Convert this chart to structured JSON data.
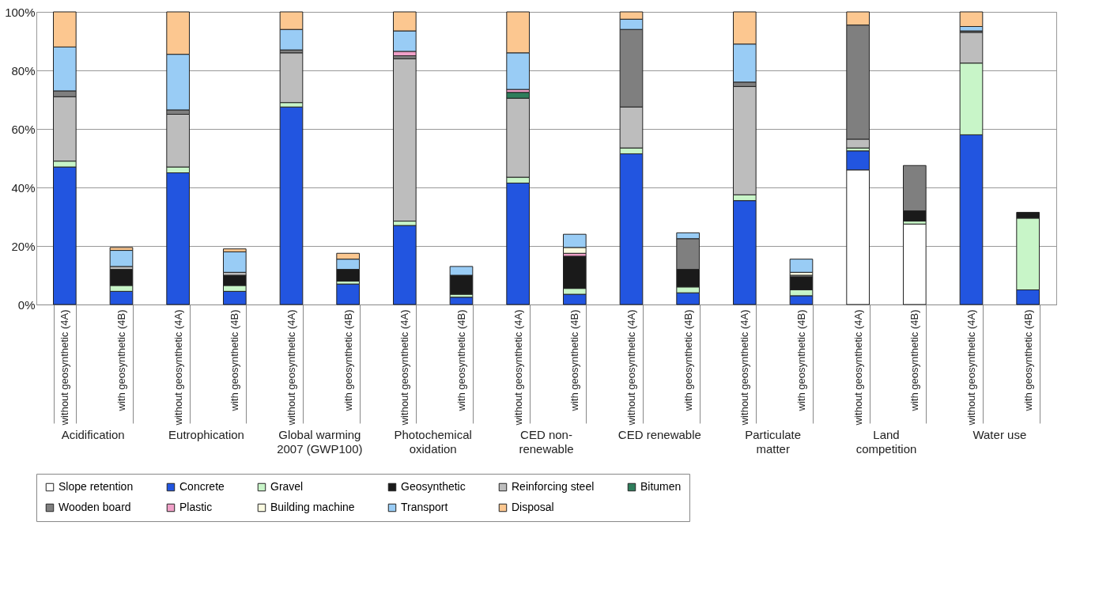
{
  "chart_data": {
    "type": "bar",
    "stacked": true,
    "categories": [
      "without geosynthetic (4A)",
      "with geosynthetic (4B)",
      "without geosynthetic (4A)",
      "with geosynthetic (4B)",
      "without geosynthetic (4A)",
      "with geosynthetic (4B)",
      "without geosynthetic (4A)",
      "with geosynthetic (4B)",
      "without geosynthetic (4A)",
      "with geosynthetic (4B)",
      "without geosynthetic (4A)",
      "with geosynthetic (4B)",
      "without geosynthetic (4A)",
      "with geosynthetic (4B)",
      "without geosynthetic (4A)",
      "with geosynthetic (4B)",
      "without geosynthetic (4A)",
      "with geosynthetic (4B)"
    ],
    "annotations": [
      "Acidification",
      "Eutrophication",
      "Global warming 2007 (GWP100)",
      "Photochemical oxidation",
      "CED non-renewable",
      "CED renewable",
      "Particulate matter",
      "Land competition",
      "Water use"
    ],
    "series": [
      {
        "name": "Slope retention",
        "color": "#ffffff",
        "values": [
          null,
          null,
          null,
          null,
          null,
          null,
          null,
          null,
          null,
          null,
          null,
          null,
          null,
          null,
          46,
          27.5,
          null,
          null
        ]
      },
      {
        "name": "Concrete",
        "color": "#2255e0",
        "values": [
          47,
          4.5,
          45,
          4.5,
          67.5,
          7,
          27,
          2.5,
          41.5,
          3.5,
          51.5,
          4,
          35.5,
          3,
          6.5,
          null,
          58,
          5
        ]
      },
      {
        "name": "Gravel",
        "color": "#c8f5c8",
        "values": [
          2,
          2,
          2,
          2,
          1.5,
          1,
          1.5,
          1,
          2,
          2,
          2,
          2,
          2,
          2,
          1,
          1,
          24.5,
          24.5
        ]
      },
      {
        "name": "Geosynthetic",
        "color": "#1a1a1a",
        "values": [
          null,
          5.5,
          null,
          3.5,
          null,
          4,
          null,
          6.5,
          null,
          11,
          null,
          6,
          null,
          4.5,
          null,
          3.5,
          null,
          2
        ]
      },
      {
        "name": "Reinforcing steel",
        "color": "#bdbdbd",
        "values": [
          22,
          1,
          18,
          1,
          17,
          null,
          55.5,
          null,
          27,
          null,
          14,
          null,
          37,
          0.5,
          3,
          null,
          10.5,
          null
        ]
      },
      {
        "name": "Bitumen",
        "color": "#2e7d5b",
        "values": [
          null,
          null,
          null,
          null,
          null,
          null,
          null,
          null,
          2,
          null,
          null,
          null,
          null,
          null,
          null,
          null,
          null,
          null
        ]
      },
      {
        "name": "Wooden board",
        "color": "#7f7f7f",
        "values": [
          2,
          null,
          1.5,
          null,
          1,
          null,
          1,
          null,
          null,
          null,
          26.5,
          10.5,
          1.5,
          null,
          39,
          15.5,
          0.5,
          null
        ]
      },
      {
        "name": "Plastic",
        "color": "#f0a0c8",
        "values": [
          null,
          null,
          null,
          null,
          null,
          null,
          1.5,
          null,
          1,
          1,
          null,
          null,
          null,
          null,
          null,
          null,
          null,
          null
        ]
      },
      {
        "name": "Building machine",
        "color": "#fafae0",
        "values": [
          null,
          null,
          null,
          null,
          null,
          null,
          null,
          null,
          null,
          2,
          null,
          null,
          null,
          1,
          null,
          null,
          null,
          null
        ]
      },
      {
        "name": "Transport",
        "color": "#99ccf5",
        "values": [
          15,
          5.5,
          19,
          7,
          7,
          3.5,
          7,
          3,
          12.5,
          4.5,
          3.5,
          2,
          13,
          4.5,
          null,
          null,
          1.5,
          null
        ]
      },
      {
        "name": "Disposal",
        "color": "#fcc790",
        "values": [
          12,
          1,
          14.5,
          1,
          6,
          2,
          6.5,
          null,
          14,
          null,
          2.5,
          null,
          11,
          null,
          4.5,
          null,
          5,
          null
        ]
      }
    ],
    "ylim": [
      0,
      100
    ],
    "yticks": [
      {
        "value": 0,
        "label": "0%"
      },
      {
        "value": 20,
        "label": "20%"
      },
      {
        "value": 40,
        "label": "40%"
      },
      {
        "value": 60,
        "label": "60%"
      },
      {
        "value": 80,
        "label": "80%"
      },
      {
        "value": 100,
        "label": "100%"
      }
    ],
    "grid": "y",
    "legend": "bottom"
  }
}
